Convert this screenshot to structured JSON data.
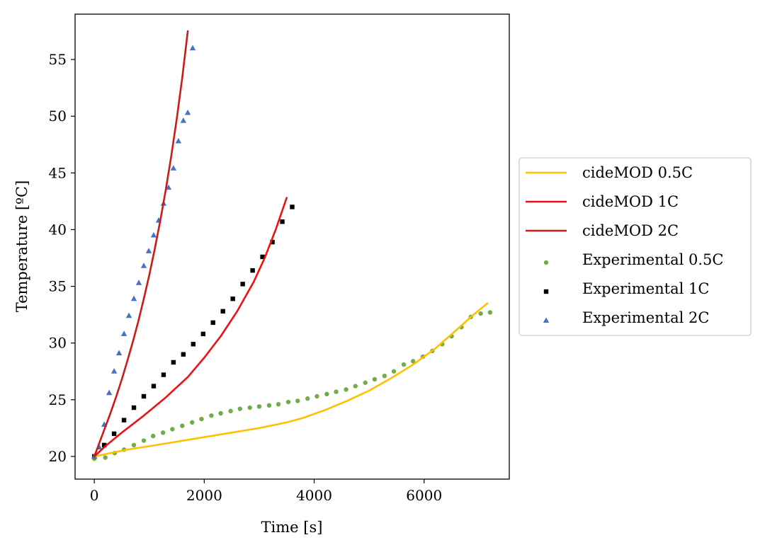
{
  "chart_data": {
    "type": "line",
    "title": "",
    "xlabel": "Time [s]",
    "ylabel": "Temperature [ºC]",
    "xlim": [
      -350,
      7550
    ],
    "ylim": [
      18,
      59
    ],
    "xticks": [
      0,
      2000,
      4000,
      6000
    ],
    "xtick_labels": [
      "0",
      "2000",
      "4000",
      "6000"
    ],
    "yticks": [
      20,
      25,
      30,
      35,
      40,
      45,
      50,
      55
    ],
    "ytick_labels": [
      "20",
      "25",
      "30",
      "35",
      "40",
      "45",
      "50",
      "55"
    ],
    "grid": false,
    "legend_position": "right, outside plot",
    "series": [
      {
        "name": "cideMOD 0.5C",
        "kind": "line",
        "color": "#FFC000",
        "x": [
          0,
          300,
          600,
          1000,
          1500,
          2000,
          2500,
          3000,
          3500,
          3800,
          4200,
          4600,
          5000,
          5400,
          5800,
          6200,
          6600,
          6900,
          7150
        ],
        "y": [
          20.0,
          20.3,
          20.6,
          20.9,
          21.3,
          21.7,
          22.1,
          22.5,
          23.0,
          23.4,
          24.1,
          24.9,
          25.8,
          26.9,
          28.1,
          29.5,
          31.2,
          32.5,
          33.5
        ]
      },
      {
        "name": "cideMOD 1C",
        "kind": "line",
        "color": "#EE1111",
        "x": [
          0,
          200,
          500,
          900,
          1300,
          1700,
          2000,
          2300,
          2600,
          2900,
          3100,
          3300,
          3500
        ],
        "y": [
          20.0,
          20.9,
          22.1,
          23.6,
          25.2,
          27.0,
          28.7,
          30.6,
          32.8,
          35.4,
          37.5,
          40.0,
          42.8
        ]
      },
      {
        "name": "cideMOD 2C",
        "kind": "line",
        "color": "#CC1A1A",
        "x": [
          0,
          100,
          200,
          300,
          400,
          500,
          600,
          700,
          800,
          900,
          1000,
          1100,
          1200,
          1300,
          1400,
          1500,
          1600,
          1700
        ],
        "y": [
          20.0,
          21.3,
          22.6,
          23.9,
          25.3,
          26.8,
          28.4,
          30.1,
          31.9,
          33.9,
          36.0,
          38.3,
          40.8,
          43.5,
          46.5,
          49.8,
          53.4,
          57.5
        ]
      },
      {
        "name": "Experimental 0.5C",
        "kind": "scatter",
        "marker": "circle",
        "color": "#70AD47",
        "x": [
          0,
          200,
          370,
          540,
          720,
          900,
          1070,
          1250,
          1420,
          1600,
          1780,
          1950,
          2130,
          2300,
          2480,
          2650,
          2830,
          3000,
          3180,
          3350,
          3530,
          3700,
          3880,
          4050,
          4230,
          4400,
          4580,
          4750,
          4930,
          5100,
          5280,
          5450,
          5630,
          5800,
          5980,
          6150,
          6330,
          6500,
          6680,
          6850,
          7030,
          7200
        ],
        "y": [
          19.8,
          19.9,
          20.3,
          20.6,
          21.0,
          21.4,
          21.8,
          22.1,
          22.4,
          22.7,
          23.0,
          23.3,
          23.6,
          23.8,
          24.0,
          24.2,
          24.3,
          24.4,
          24.5,
          24.6,
          24.8,
          24.9,
          25.1,
          25.3,
          25.5,
          25.7,
          25.9,
          26.2,
          26.5,
          26.8,
          27.1,
          27.5,
          28.1,
          28.4,
          28.8,
          29.3,
          29.9,
          30.6,
          31.4,
          32.3,
          32.6,
          32.7
        ]
      },
      {
        "name": "Experimental 1C",
        "kind": "scatter",
        "marker": "square",
        "color": "#000000",
        "x": [
          0,
          180,
          360,
          540,
          720,
          900,
          1080,
          1260,
          1440,
          1620,
          1800,
          1980,
          2160,
          2340,
          2520,
          2700,
          2880,
          3060,
          3240,
          3420,
          3600
        ],
        "y": [
          20.0,
          21.0,
          22.0,
          23.2,
          24.3,
          25.3,
          26.2,
          27.2,
          28.3,
          29.0,
          29.9,
          30.8,
          31.8,
          32.8,
          33.9,
          35.2,
          36.4,
          37.6,
          38.9,
          40.7,
          42.0
        ]
      },
      {
        "name": "Experimental 2C",
        "kind": "scatter",
        "marker": "triangle",
        "color": "#4472C4",
        "x": [
          0,
          90,
          180,
          270,
          360,
          450,
          540,
          630,
          720,
          810,
          900,
          990,
          1080,
          1170,
          1260,
          1350,
          1440,
          1530,
          1620,
          1700,
          1790
        ],
        "y": [
          20.0,
          20.8,
          22.8,
          25.6,
          27.5,
          29.1,
          30.8,
          32.4,
          33.9,
          35.3,
          36.8,
          38.1,
          39.5,
          40.8,
          42.3,
          43.7,
          45.4,
          47.8,
          49.6,
          50.3,
          56.0
        ]
      }
    ]
  }
}
